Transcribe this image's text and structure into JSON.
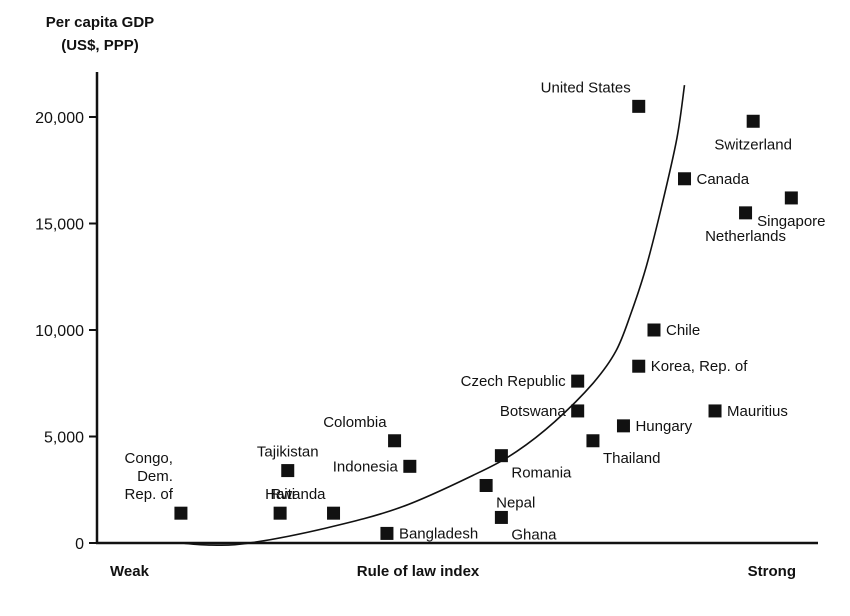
{
  "chart_data": {
    "type": "scatter",
    "ylabel_line1": "Per capita GDP",
    "ylabel_line2": "(US$, PPP)",
    "xlabel": "Rule of law index",
    "x_endpoint_left": "Weak",
    "x_endpoint_right": "Strong",
    "x_scale": "ordinal (no numeric ticks)",
    "ylim": [
      0,
      22000
    ],
    "y_ticks": [
      0,
      5000,
      10000,
      15000,
      20000
    ],
    "y_tick_labels": [
      "0",
      "5,000",
      "10,000",
      "15,000",
      "20,000"
    ],
    "grid": false,
    "points": [
      {
        "label": "Congo, Dem. Rep. of",
        "label_lines": [
          "Congo,",
          "Dem.",
          "Rep. of"
        ],
        "x": 0.11,
        "y": 1400,
        "label_pos": "above-left"
      },
      {
        "label": "Haiti",
        "x": 0.24,
        "y": 1400,
        "label_pos": "above"
      },
      {
        "label": "Tajikistan",
        "x": 0.25,
        "y": 3400,
        "label_pos": "above"
      },
      {
        "label": "Rwanda",
        "x": 0.31,
        "y": 1400,
        "label_pos": "above-left"
      },
      {
        "label": "Colombia",
        "x": 0.39,
        "y": 4800,
        "label_pos": "above-left"
      },
      {
        "label": "Indonesia",
        "x": 0.41,
        "y": 3600,
        "label_pos": "left"
      },
      {
        "label": "Bangladesh",
        "x": 0.38,
        "y": 450,
        "label_pos": "right"
      },
      {
        "label": "Romania",
        "x": 0.53,
        "y": 4100,
        "label_pos": "below-right"
      },
      {
        "label": "Nepal",
        "x": 0.51,
        "y": 2700,
        "label_pos": "below-right"
      },
      {
        "label": "Ghana",
        "x": 0.53,
        "y": 1200,
        "label_pos": "below-right"
      },
      {
        "label": "Czech Republic",
        "x": 0.63,
        "y": 7600,
        "label_pos": "left"
      },
      {
        "label": "Botswana",
        "x": 0.63,
        "y": 6200,
        "label_pos": "left"
      },
      {
        "label": "Thailand",
        "x": 0.65,
        "y": 4800,
        "label_pos": "below-right"
      },
      {
        "label": "Hungary",
        "x": 0.69,
        "y": 5500,
        "label_pos": "right"
      },
      {
        "label": "Korea, Rep. of",
        "x": 0.71,
        "y": 8300,
        "label_pos": "right"
      },
      {
        "label": "Chile",
        "x": 0.73,
        "y": 10000,
        "label_pos": "right"
      },
      {
        "label": "Mauritius",
        "x": 0.81,
        "y": 6200,
        "label_pos": "right"
      },
      {
        "label": "United States",
        "x": 0.71,
        "y": 20500,
        "label_pos": "above-left"
      },
      {
        "label": "Canada",
        "x": 0.77,
        "y": 17100,
        "label_pos": "right"
      },
      {
        "label": "Switzerland",
        "x": 0.86,
        "y": 19800,
        "label_pos": "below"
      },
      {
        "label": "Netherlands",
        "x": 0.85,
        "y": 15500,
        "label_pos": "below"
      },
      {
        "label": "Singapore",
        "x": 0.91,
        "y": 16200,
        "label_pos": "below"
      }
    ],
    "trend_curve": {
      "type": "exponential-fit",
      "x": [
        0.11,
        0.15,
        0.2,
        0.3,
        0.4,
        0.5,
        0.55,
        0.6,
        0.65,
        0.68,
        0.7,
        0.72,
        0.74,
        0.76,
        0.77
      ],
      "y": [
        0,
        -100,
        0,
        700,
        1700,
        3300,
        4300,
        5700,
        7500,
        9000,
        10800,
        13000,
        15800,
        19000,
        21500
      ]
    }
  }
}
